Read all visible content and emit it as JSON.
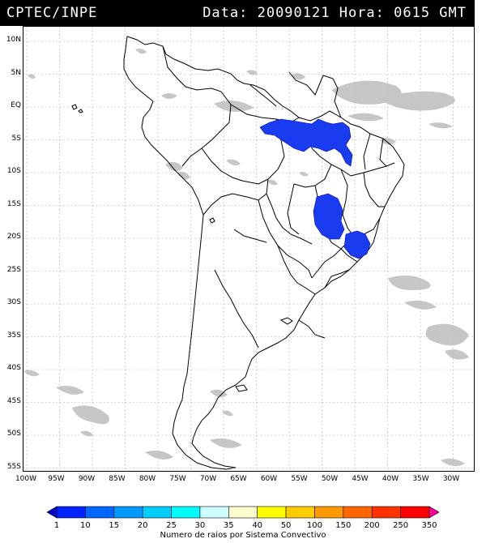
{
  "header": {
    "source": "CPTEC/INPE",
    "datetime": "Data: 20090121 Hora: 0615 GMT"
  },
  "map": {
    "lat_labels": [
      "10N",
      "5N",
      "EQ",
      "5S",
      "10S",
      "15S",
      "20S",
      "25S",
      "30S",
      "35S",
      "40S",
      "45S",
      "50S",
      "55S"
    ],
    "lon_labels": [
      "100W",
      "95W",
      "90W",
      "85W",
      "80W",
      "75W",
      "70W",
      "65W",
      "60W",
      "55W",
      "50W",
      "45W",
      "40W",
      "35W",
      "30W"
    ],
    "gridlines": true
  },
  "legend": {
    "ticks": [
      "1",
      "10",
      "15",
      "20",
      "25",
      "30",
      "35",
      "40",
      "50",
      "100",
      "150",
      "200",
      "250",
      "350"
    ],
    "colors": [
      "#0000cc",
      "#0022ff",
      "#0066ff",
      "#0099ff",
      "#00ccff",
      "#00ffff",
      "#ccffff",
      "#ffffcc",
      "#ffff00",
      "#ffcc00",
      "#ff9900",
      "#ff6600",
      "#ff3300",
      "#ff0000",
      "#ff0099"
    ],
    "caption": "Numero de raios por Sistema Convectivo"
  }
}
